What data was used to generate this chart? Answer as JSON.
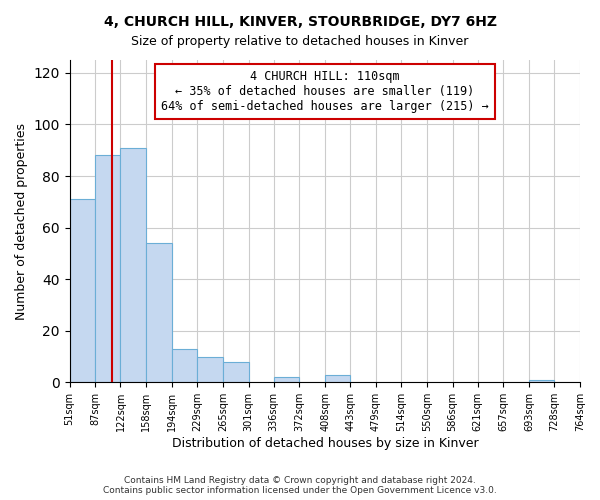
{
  "title": "4, CHURCH HILL, KINVER, STOURBRIDGE, DY7 6HZ",
  "subtitle": "Size of property relative to detached houses in Kinver",
  "xlabel": "Distribution of detached houses by size in Kinver",
  "ylabel": "Number of detached properties",
  "bar_color": "#c5d8f0",
  "bar_edge_color": "#6baed6",
  "bin_edges": [
    51,
    87,
    122,
    158,
    194,
    229,
    265,
    301,
    336,
    372,
    408,
    443,
    479,
    514,
    550,
    586,
    621,
    657,
    693,
    728,
    764
  ],
  "bar_heights": [
    71,
    88,
    91,
    54,
    13,
    10,
    8,
    0,
    2,
    0,
    3,
    0,
    0,
    0,
    0,
    0,
    0,
    0,
    1,
    0
  ],
  "property_line_x": 110,
  "property_line_color": "#cc0000",
  "annotation_text": "4 CHURCH HILL: 110sqm\n← 35% of detached houses are smaller (119)\n64% of semi-detached houses are larger (215) →",
  "annotation_box_color": "#ffffff",
  "annotation_box_edge_color": "#cc0000",
  "ylim": [
    0,
    125
  ],
  "yticks": [
    0,
    20,
    40,
    60,
    80,
    100,
    120
  ],
  "tick_labels": [
    "51sqm",
    "87sqm",
    "122sqm",
    "158sqm",
    "194sqm",
    "229sqm",
    "265sqm",
    "301sqm",
    "336sqm",
    "372sqm",
    "408sqm",
    "443sqm",
    "479sqm",
    "514sqm",
    "550sqm",
    "586sqm",
    "621sqm",
    "657sqm",
    "693sqm",
    "728sqm",
    "764sqm"
  ],
  "footer_text": "Contains HM Land Registry data © Crown copyright and database right 2024.\nContains public sector information licensed under the Open Government Licence v3.0.",
  "background_color": "#ffffff",
  "grid_color": "#cccccc",
  "title_fontsize": 10,
  "subtitle_fontsize": 9
}
